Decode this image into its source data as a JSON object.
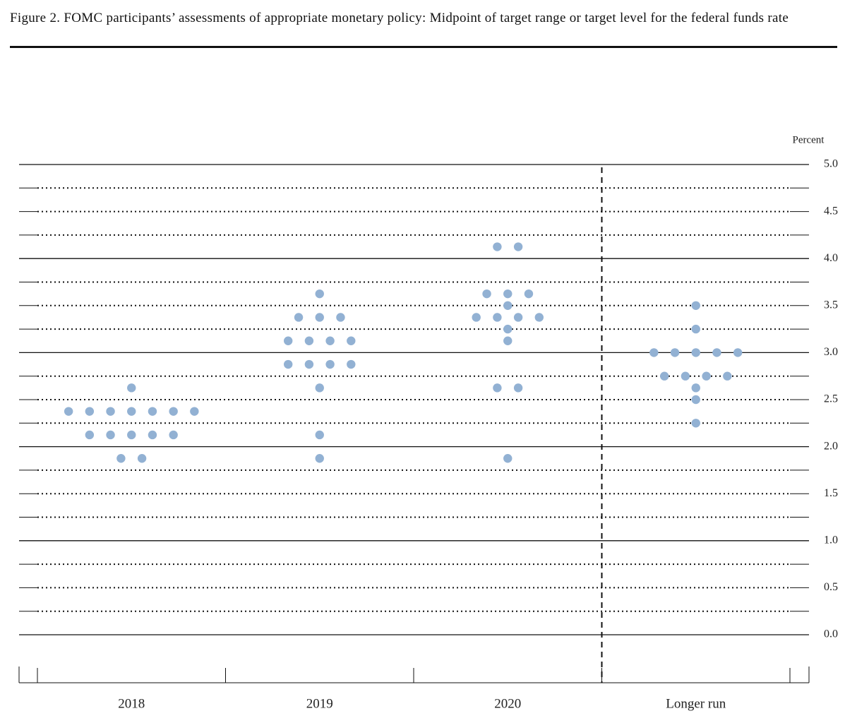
{
  "chart_data": {
    "type": "dot",
    "title": "Figure 2. FOMC participants’ assessments of appropriate monetary policy: Midpoint of target range or target level for the federal funds rate",
    "y_label": "Percent",
    "categories": [
      "2018",
      "2019",
      "2020",
      "Longer run"
    ],
    "dots": [
      [
        2.625,
        2.375,
        2.375,
        2.375,
        2.375,
        2.375,
        2.375,
        2.375,
        2.125,
        2.125,
        2.125,
        2.125,
        2.125,
        1.875,
        1.875
      ],
      [
        3.625,
        3.375,
        3.375,
        3.375,
        3.125,
        3.125,
        3.125,
        3.125,
        2.875,
        2.875,
        2.875,
        2.875,
        2.625,
        2.125,
        1.875
      ],
      [
        4.125,
        4.125,
        3.625,
        3.625,
        3.625,
        3.5,
        3.375,
        3.375,
        3.375,
        3.375,
        3.25,
        3.125,
        2.625,
        2.625,
        1.875
      ],
      [
        3.5,
        3.25,
        3.0,
        3.0,
        3.0,
        3.0,
        3.0,
        2.75,
        2.75,
        2.75,
        2.75,
        2.625,
        2.5,
        2.25
      ]
    ],
    "color": "#92b1d3",
    "ylim": [
      0,
      5
    ],
    "yticks": [
      {
        "value": 0,
        "label": "0.0"
      },
      {
        "value": 0.5,
        "label": "0.5"
      },
      {
        "value": 1,
        "label": "1.0"
      },
      {
        "value": 1.5,
        "label": "1.5"
      },
      {
        "value": 2,
        "label": "2.0"
      },
      {
        "value": 2.5,
        "label": "2.5"
      },
      {
        "value": 3,
        "label": "3.0"
      },
      {
        "value": 3.5,
        "label": "3.5"
      },
      {
        "value": 4,
        "label": "4.0"
      },
      {
        "value": 4.5,
        "label": "4.5"
      },
      {
        "value": 5,
        "label": "5.0"
      }
    ],
    "grid_lines": [
      0,
      0.25,
      0.5,
      0.75,
      1,
      1.25,
      1.5,
      1.75,
      2,
      2.25,
      2.5,
      2.75,
      3,
      3.25,
      3.5,
      3.75,
      4,
      4.25,
      4.5,
      4.75,
      5
    ]
  }
}
